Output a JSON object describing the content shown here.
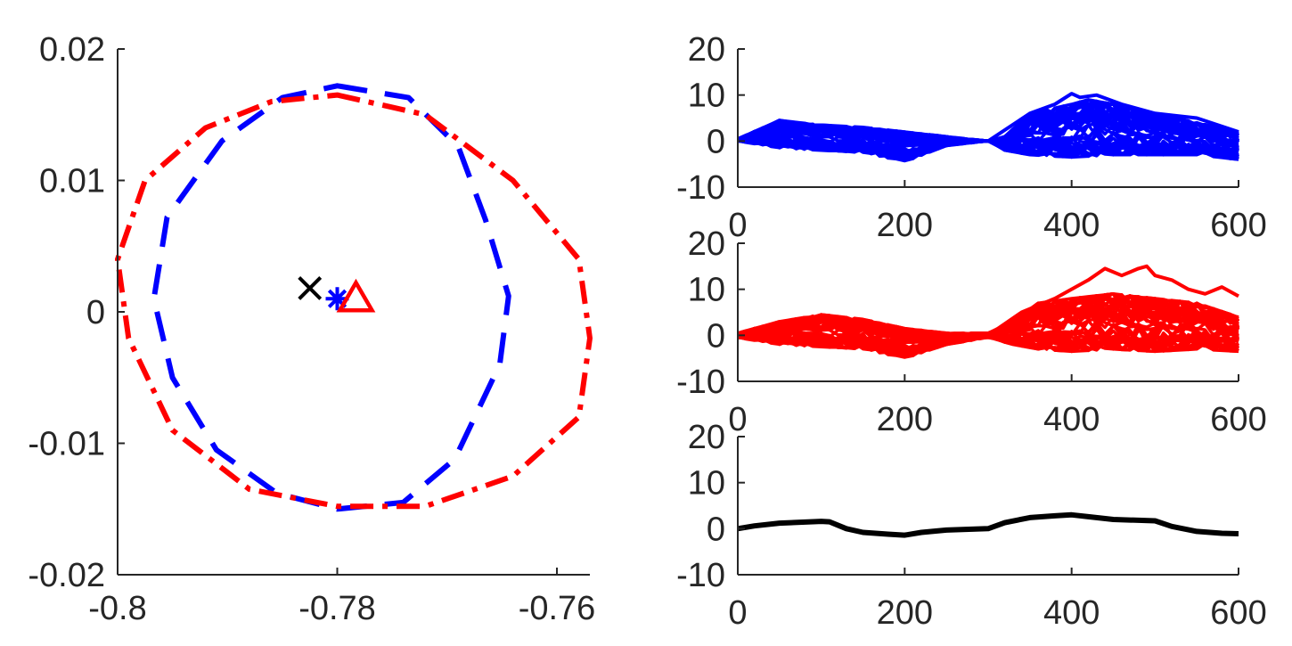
{
  "chart_data": [
    {
      "type": "line",
      "title": "",
      "xlabel": "",
      "ylabel": "",
      "xlim": [
        -0.8,
        -0.757
      ],
      "ylim": [
        -0.02,
        0.02
      ],
      "xticks": [
        -0.8,
        -0.78,
        -0.76
      ],
      "xtick_labels": [
        "-0.8",
        "-0.78",
        "-0.76"
      ],
      "yticks": [
        -0.02,
        -0.01,
        0,
        0.01,
        0.02
      ],
      "ytick_labels": [
        "-0.02",
        "-0.01",
        "0",
        "0.01",
        "0.02"
      ],
      "grid": false,
      "series": [
        {
          "style": "dashed",
          "color": "#0000ff",
          "points": [
            [
              -0.78,
              0.0172
            ],
            [
              -0.7735,
              0.0163
            ],
            [
              -0.769,
              0.0126
            ],
            [
              -0.7665,
              0.007
            ],
            [
              -0.7644,
              0.0012
            ],
            [
              -0.7652,
              -0.004
            ],
            [
              -0.7693,
              -0.0112
            ],
            [
              -0.774,
              -0.0145
            ],
            [
              -0.78,
              -0.015
            ],
            [
              -0.7855,
              -0.0138
            ],
            [
              -0.791,
              -0.0105
            ],
            [
              -0.795,
              -0.005
            ],
            [
              -0.7967,
              0.001
            ],
            [
              -0.7955,
              0.0072
            ],
            [
              -0.7905,
              0.013
            ],
            [
              -0.785,
              0.0163
            ],
            [
              -0.78,
              0.0172
            ]
          ]
        },
        {
          "style": "dash-dot",
          "color": "#ff0000",
          "points": [
            [
              -0.78,
              0.0165
            ],
            [
              -0.772,
              0.015
            ],
            [
              -0.764,
              0.01
            ],
            [
              -0.758,
              0.004
            ],
            [
              -0.757,
              -0.002
            ],
            [
              -0.758,
              -0.008
            ],
            [
              -0.764,
              -0.0125
            ],
            [
              -0.772,
              -0.0148
            ],
            [
              -0.78,
              -0.0148
            ],
            [
              -0.788,
              -0.0135
            ],
            [
              -0.795,
              -0.009
            ],
            [
              -0.799,
              -0.002
            ],
            [
              -0.8,
              0.004
            ],
            [
              -0.7975,
              0.01
            ],
            [
              -0.792,
              0.014
            ],
            [
              -0.786,
              0.016
            ],
            [
              -0.78,
              0.0165
            ]
          ]
        }
      ],
      "markers": [
        {
          "symbol": "×",
          "color": "#000000",
          "x": -0.7825,
          "y": 0.0018
        },
        {
          "symbol": "∗",
          "color": "#0000ff",
          "x": -0.78,
          "y": 0.001
        },
        {
          "symbol": "△",
          "color": "#ff0000",
          "x": -0.7783,
          "y": 0.001
        }
      ]
    },
    {
      "type": "line",
      "xlim": [
        0,
        600
      ],
      "ylim": [
        -10,
        20
      ],
      "xticks": [
        0,
        200,
        400,
        600
      ],
      "xtick_labels": [
        "0",
        "200",
        "400",
        "600"
      ],
      "yticks": [
        -10,
        0,
        10,
        20
      ],
      "ytick_labels": [
        "-10",
        "0",
        "10",
        "20"
      ],
      "series_color": "#0000ff",
      "envelope_upper": [
        [
          0,
          0.5
        ],
        [
          50,
          4.5
        ],
        [
          100,
          3.5
        ],
        [
          150,
          3
        ],
        [
          200,
          2
        ],
        [
          250,
          1
        ],
        [
          300,
          0
        ],
        [
          320,
          1
        ],
        [
          350,
          6
        ],
        [
          400,
          8
        ],
        [
          420,
          9
        ],
        [
          450,
          8
        ],
        [
          500,
          6
        ],
        [
          550,
          4
        ],
        [
          600,
          2
        ]
      ],
      "envelope_lower": [
        [
          0,
          0
        ],
        [
          50,
          -1.5
        ],
        [
          100,
          -2
        ],
        [
          150,
          -2.5
        ],
        [
          200,
          -4.5
        ],
        [
          250,
          -1
        ],
        [
          300,
          0
        ],
        [
          320,
          -2
        ],
        [
          350,
          -3
        ],
        [
          400,
          -3.5
        ],
        [
          450,
          -3
        ],
        [
          500,
          -3
        ],
        [
          550,
          -3
        ],
        [
          600,
          -4
        ]
      ],
      "highlight_series": [
        [
          0,
          0
        ],
        [
          50,
          4.5
        ],
        [
          100,
          3
        ],
        [
          150,
          2
        ],
        [
          200,
          0
        ],
        [
          300,
          0
        ],
        [
          350,
          6
        ],
        [
          380,
          8
        ],
        [
          400,
          10.3
        ],
        [
          410,
          9.5
        ],
        [
          430,
          10
        ],
        [
          460,
          8
        ],
        [
          500,
          6
        ],
        [
          550,
          5
        ],
        [
          600,
          2
        ]
      ]
    },
    {
      "type": "line",
      "xlim": [
        0,
        600
      ],
      "ylim": [
        -10,
        20
      ],
      "xticks": [
        0,
        200,
        400,
        600
      ],
      "xtick_labels": [
        "0",
        "200",
        "400",
        "600"
      ],
      "yticks": [
        -10,
        0,
        10,
        20
      ],
      "ytick_labels": [
        "-10",
        "0",
        "10",
        "20"
      ],
      "series_color": "#ff0000",
      "envelope_upper": [
        [
          0,
          0.5
        ],
        [
          50,
          3
        ],
        [
          100,
          4.5
        ],
        [
          150,
          3.5
        ],
        [
          200,
          1.5
        ],
        [
          250,
          0.5
        ],
        [
          300,
          0.5
        ],
        [
          330,
          3
        ],
        [
          360,
          7
        ],
        [
          400,
          8
        ],
        [
          450,
          9
        ],
        [
          500,
          8
        ],
        [
          550,
          7
        ],
        [
          600,
          4
        ]
      ],
      "envelope_lower": [
        [
          0,
          -0.5
        ],
        [
          50,
          -2
        ],
        [
          100,
          -2.5
        ],
        [
          150,
          -3
        ],
        [
          200,
          -5
        ],
        [
          250,
          -2
        ],
        [
          300,
          -0.5
        ],
        [
          330,
          -2
        ],
        [
          360,
          -3
        ],
        [
          400,
          -3.5
        ],
        [
          450,
          -3
        ],
        [
          500,
          -3.5
        ],
        [
          550,
          -3
        ],
        [
          600,
          -3.5
        ]
      ],
      "highlight_series": [
        [
          0,
          0
        ],
        [
          100,
          3
        ],
        [
          200,
          0
        ],
        [
          300,
          0
        ],
        [
          340,
          5
        ],
        [
          380,
          8
        ],
        [
          420,
          12
        ],
        [
          440,
          14.5
        ],
        [
          460,
          13
        ],
        [
          480,
          14.5
        ],
        [
          490,
          15
        ],
        [
          500,
          13
        ],
        [
          520,
          12
        ],
        [
          540,
          10
        ],
        [
          560,
          9
        ],
        [
          580,
          10.5
        ],
        [
          600,
          8.5
        ]
      ]
    },
    {
      "type": "line",
      "xlim": [
        0,
        600
      ],
      "ylim": [
        -10,
        20
      ],
      "xticks": [
        0,
        200,
        400,
        600
      ],
      "xtick_labels": [
        "0",
        "200",
        "400",
        "600"
      ],
      "yticks": [
        -10,
        0,
        10,
        20
      ],
      "ytick_labels": [
        "-10",
        "0",
        "10",
        "20"
      ],
      "series": [
        {
          "color": "#000000",
          "points": [
            [
              0,
              0
            ],
            [
              20,
              0.6
            ],
            [
              50,
              1.2
            ],
            [
              100,
              1.6
            ],
            [
              110,
              1.5
            ],
            [
              130,
              0
            ],
            [
              150,
              -0.8
            ],
            [
              180,
              -1.2
            ],
            [
              200,
              -1.4
            ],
            [
              220,
              -0.8
            ],
            [
              250,
              -0.3
            ],
            [
              300,
              0
            ],
            [
              320,
              1.3
            ],
            [
              350,
              2.4
            ],
            [
              380,
              2.8
            ],
            [
              400,
              3.0
            ],
            [
              420,
              2.6
            ],
            [
              450,
              2.0
            ],
            [
              500,
              1.7
            ],
            [
              520,
              0.5
            ],
            [
              550,
              -0.6
            ],
            [
              580,
              -1.0
            ],
            [
              600,
              -1.1
            ]
          ]
        }
      ]
    }
  ]
}
